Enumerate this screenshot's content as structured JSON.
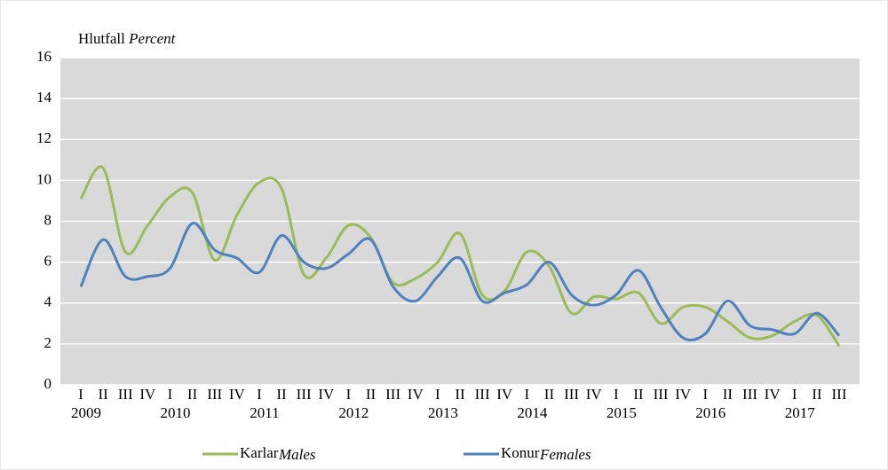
{
  "chart_data": {
    "type": "line",
    "y_label": "Hlutfall",
    "y_label_en": "Percent",
    "categories": [
      "I",
      "II",
      "III",
      "IV",
      "I",
      "II",
      "III",
      "IV",
      "I",
      "II",
      "III",
      "IV",
      "I",
      "II",
      "III",
      "IV",
      "I",
      "II",
      "III",
      "IV",
      "I",
      "II",
      "III",
      "IV",
      "I",
      "II",
      "III",
      "IV",
      "I",
      "II",
      "III",
      "IV",
      "I",
      "II",
      "III"
    ],
    "years": [
      "2009",
      "2010",
      "2011",
      "2012",
      "2013",
      "2014",
      "2015",
      "2016",
      "2017"
    ],
    "series": [
      {
        "name": "Karlar",
        "name_en": "Males",
        "color": "#9bbb59",
        "values": [
          9.1,
          10.6,
          6.5,
          7.8,
          9.2,
          9.4,
          6.1,
          8.3,
          9.9,
          9.6,
          5.4,
          6.2,
          7.8,
          7.2,
          5.0,
          5.2,
          6.0,
          7.4,
          4.4,
          4.6,
          6.5,
          5.8,
          3.5,
          4.3,
          4.2,
          4.5,
          3.0,
          3.8,
          3.8,
          3.1,
          2.3,
          2.4,
          3.1,
          3.4,
          1.9
        ]
      },
      {
        "name": "Konur",
        "name_en": "Females",
        "color": "#4f81bd",
        "values": [
          4.8,
          7.1,
          5.3,
          5.3,
          5.7,
          7.9,
          6.6,
          6.2,
          5.5,
          7.3,
          6.0,
          5.7,
          6.4,
          7.1,
          4.8,
          4.1,
          5.3,
          6.2,
          4.1,
          4.5,
          4.9,
          6.0,
          4.4,
          3.9,
          4.4,
          5.6,
          3.8,
          2.3,
          2.5,
          4.1,
          2.9,
          2.7,
          2.5,
          3.5,
          2.4
        ]
      }
    ],
    "ylim": [
      0,
      16
    ],
    "yticks": [
      0,
      2,
      4,
      6,
      8,
      10,
      12,
      14,
      16
    ],
    "grid": true,
    "legend": "bottom"
  }
}
